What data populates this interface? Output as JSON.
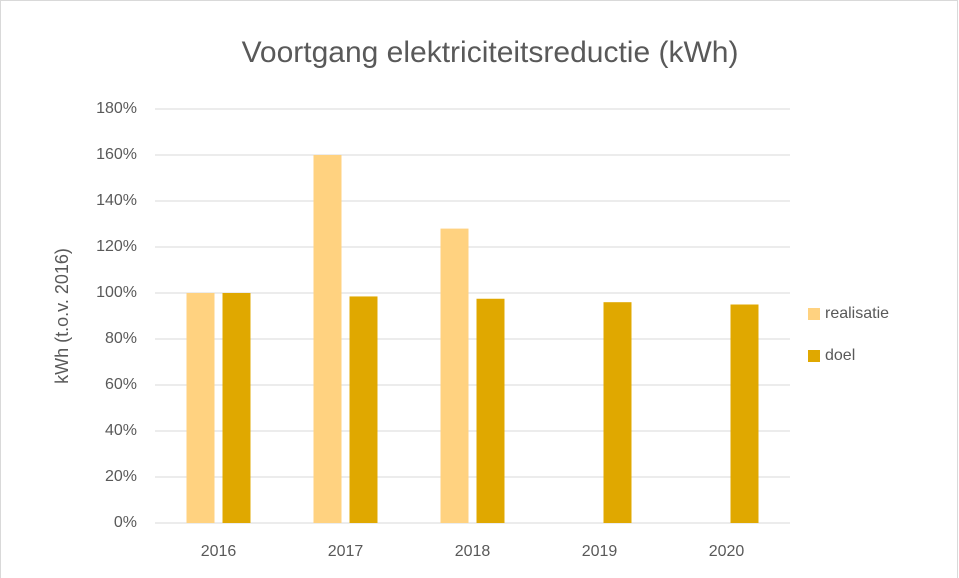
{
  "chart_data": {
    "type": "bar",
    "title": "Voortgang elektriciteitsreductie (kWh)",
    "y_label": "kWh (t.o.v. 2016)",
    "categories": [
      "2016",
      "2017",
      "2018",
      "2019",
      "2020"
    ],
    "series": [
      {
        "name": "realisatie",
        "color": "#ffd280",
        "values": [
          100,
          160,
          128,
          null,
          null
        ]
      },
      {
        "name": "doel",
        "color": "#e0a800",
        "values": [
          100,
          98.5,
          97.5,
          96,
          95
        ]
      }
    ],
    "ylim": [
      0,
      180
    ],
    "yticks": [
      {
        "value": 0,
        "label": "0%"
      },
      {
        "value": 20,
        "label": "20%"
      },
      {
        "value": 40,
        "label": "40%"
      },
      {
        "value": 60,
        "label": "60%"
      },
      {
        "value": 80,
        "label": "80%"
      },
      {
        "value": 100,
        "label": "100%"
      },
      {
        "value": 120,
        "label": "120%"
      },
      {
        "value": 140,
        "label": "140%"
      },
      {
        "value": 160,
        "label": "160%"
      },
      {
        "value": 180,
        "label": "180%"
      }
    ],
    "grid": true,
    "legend": "right"
  }
}
